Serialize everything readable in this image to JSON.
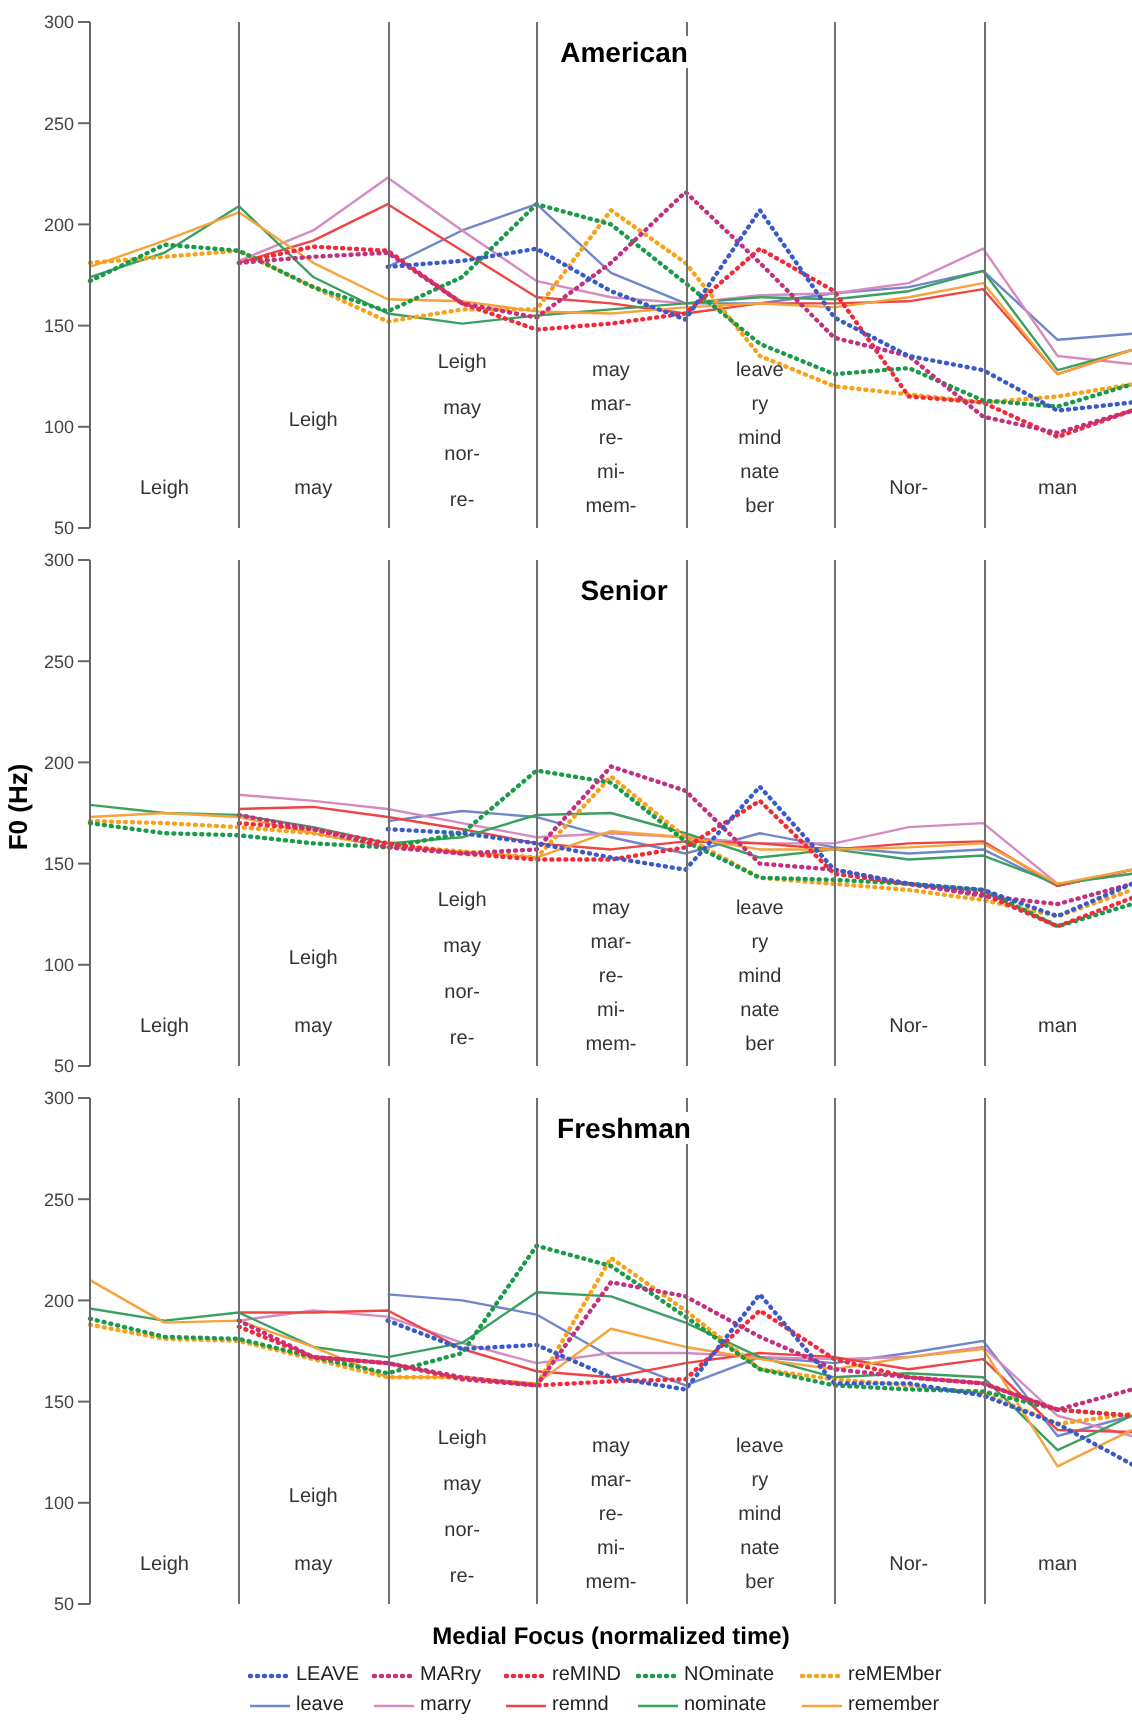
{
  "chart_data": [
    {
      "type": "line",
      "title": "American",
      "categories": [
        null,
        null,
        null,
        null,
        null,
        null,
        null,
        null,
        null,
        null,
        null,
        null,
        null,
        null,
        null
      ],
      "ylim": [
        50,
        300
      ],
      "yticks": [
        50,
        100,
        150,
        200,
        250,
        300
      ],
      "tick_labels": "y",
      "marker": "none",
      "series": [
        {
          "color": "#3a5bc7",
          "line_style": "dotted",
          "values": [
            null,
            null,
            null,
            null,
            179,
            182,
            188,
            167,
            153,
            207,
            154,
            135,
            128,
            108,
            112
          ]
        },
        {
          "color": "#6f86c9",
          "line_style": "solid",
          "values": [
            null,
            null,
            null,
            null,
            179,
            197,
            210,
            176,
            161,
            161,
            166,
            169,
            177,
            143,
            146
          ]
        },
        {
          "color": "#c2307f",
          "line_style": "dotted",
          "values": [
            null,
            null,
            181,
            184,
            186,
            161,
            154,
            181,
            216,
            181,
            144,
            135,
            105,
            97,
            108
          ]
        },
        {
          "color": "#d58bc0",
          "line_style": "solid",
          "values": [
            null,
            null,
            182,
            197,
            223,
            197,
            172,
            164,
            161,
            165,
            166,
            171,
            188,
            135,
            131
          ]
        },
        {
          "color": "#f02a3a",
          "line_style": "dotted",
          "values": [
            null,
            null,
            181,
            189,
            187,
            161,
            148,
            151,
            156,
            188,
            167,
            115,
            112,
            95,
            108
          ]
        },
        {
          "color": "#ee4444",
          "line_style": "solid",
          "values": [
            null,
            null,
            181,
            192,
            210,
            187,
            164,
            161,
            156,
            161,
            161,
            162,
            168,
            126,
            138
          ]
        },
        {
          "color": "#1a9a4a",
          "line_style": "dotted",
          "values": [
            172,
            190,
            187,
            169,
            157,
            174,
            210,
            200,
            171,
            141,
            126,
            129,
            113,
            110,
            121
          ]
        },
        {
          "color": "#3aa060",
          "line_style": "solid",
          "values": [
            174,
            186,
            209,
            174,
            156,
            151,
            155,
            158,
            161,
            164,
            163,
            167,
            177,
            128,
            138
          ]
        },
        {
          "color": "#f7a21c",
          "line_style": "dotted",
          "values": [
            181,
            184,
            187,
            169,
            152,
            158,
            158,
            207,
            181,
            135,
            120,
            116,
            112,
            115,
            121
          ]
        },
        {
          "color": "#f5a33a",
          "line_style": "solid",
          "values": [
            179,
            192,
            206,
            181,
            163,
            162,
            157,
            156,
            159,
            161,
            159,
            164,
            171,
            126,
            138
          ]
        }
      ],
      "annotations": [
        "Leigh",
        "Leigh\nmay",
        "Leigh\nmay\nnor-\nre-",
        "may\nmar-\nre-\nmi-\nmem-",
        "leave\nry\nmind\nnate\nber",
        "Nor-",
        "man"
      ]
    },
    {
      "type": "line",
      "title": "Senior",
      "ylabel": "F0 (Hz)",
      "categories": [
        null,
        null,
        null,
        null,
        null,
        null,
        null,
        null,
        null,
        null,
        null,
        null,
        null,
        null,
        null
      ],
      "ylim": [
        50,
        300
      ],
      "yticks": [
        50,
        100,
        150,
        200,
        250,
        300
      ],
      "tick_labels": "y",
      "marker": "none",
      "series": [
        {
          "color": "#3a5bc7",
          "line_style": "dotted",
          "values": [
            null,
            null,
            null,
            null,
            167,
            165,
            160,
            153,
            147,
            188,
            147,
            140,
            137,
            124,
            140
          ]
        },
        {
          "color": "#6f86c9",
          "line_style": "solid",
          "values": [
            null,
            null,
            null,
            null,
            171,
            176,
            173,
            163,
            155,
            165,
            158,
            155,
            157,
            139,
            147
          ]
        },
        {
          "color": "#c2307f",
          "line_style": "dotted",
          "values": [
            null,
            null,
            174,
            167,
            158,
            155,
            157,
            198,
            186,
            150,
            147,
            140,
            134,
            130,
            140
          ]
        },
        {
          "color": "#d58bc0",
          "line_style": "solid",
          "values": [
            null,
            null,
            184,
            181,
            177,
            170,
            163,
            165,
            163,
            160,
            160,
            168,
            170,
            140,
            145
          ]
        },
        {
          "color": "#f02a3a",
          "line_style": "dotted",
          "values": [
            null,
            null,
            170,
            167,
            160,
            155,
            152,
            152,
            158,
            181,
            145,
            140,
            135,
            119,
            133
          ]
        },
        {
          "color": "#ee4444",
          "line_style": "solid",
          "values": [
            null,
            null,
            177,
            178,
            173,
            167,
            160,
            157,
            161,
            160,
            157,
            160,
            161,
            139,
            147
          ]
        },
        {
          "color": "#1a9a4a",
          "line_style": "dotted",
          "values": [
            170,
            165,
            164,
            160,
            158,
            165,
            196,
            190,
            161,
            143,
            142,
            140,
            137,
            119,
            130
          ]
        },
        {
          "color": "#3aa060",
          "line_style": "solid",
          "values": [
            179,
            175,
            174,
            168,
            160,
            163,
            174,
            175,
            165,
            153,
            157,
            152,
            154,
            140,
            145
          ]
        },
        {
          "color": "#f7a21c",
          "line_style": "dotted",
          "values": [
            171,
            170,
            168,
            165,
            159,
            156,
            153,
            193,
            163,
            143,
            140,
            137,
            132,
            124,
            137
          ]
        },
        {
          "color": "#f5a33a",
          "line_style": "solid",
          "values": [
            173,
            175,
            173,
            165,
            158,
            156,
            153,
            166,
            163,
            157,
            157,
            158,
            160,
            140,
            147
          ]
        }
      ],
      "annotations": [
        "Leigh",
        "Leigh\nmay",
        "Leigh\nmay\nnor-\nre-",
        "may\nmar-\nre-\nmi-\nmem-",
        "leave\nry\nmind\nnate\nber",
        "Nor-",
        "man"
      ]
    },
    {
      "type": "line",
      "title": "Freshman",
      "xlabel": "Medial Focus (normalized time)",
      "legend": "bottom",
      "categories": [
        null,
        null,
        null,
        null,
        null,
        null,
        null,
        null,
        null,
        null,
        null,
        null,
        null,
        null,
        null
      ],
      "ylim": [
        50,
        300
      ],
      "yticks": [
        50,
        100,
        150,
        200,
        250,
        300
      ],
      "tick_labels": "y",
      "marker": "none",
      "series": [
        {
          "name": "LEAVE",
          "color": "#3a5bc7",
          "line_style": "dotted",
          "values": [
            null,
            null,
            null,
            null,
            190,
            176,
            178,
            162,
            156,
            203,
            159,
            159,
            153,
            139,
            119
          ]
        },
        {
          "name": "leave",
          "color": "#6f86c9",
          "line_style": "solid",
          "values": [
            null,
            null,
            null,
            null,
            203,
            200,
            193,
            172,
            158,
            172,
            169,
            174,
            180,
            133,
            143
          ]
        },
        {
          "name": "MARry",
          "color": "#c2307f",
          "line_style": "dotted",
          "values": [
            null,
            null,
            190,
            172,
            169,
            162,
            158,
            209,
            202,
            182,
            166,
            162,
            159,
            146,
            156
          ]
        },
        {
          "name": "marry",
          "color": "#d58bc0",
          "line_style": "solid",
          "values": [
            null,
            null,
            190,
            195,
            192,
            179,
            169,
            174,
            174,
            172,
            171,
            172,
            177,
            143,
            133
          ]
        },
        {
          "name": "reMIND",
          "color": "#f02a3a",
          "line_style": "dotted",
          "values": [
            null,
            null,
            187,
            172,
            169,
            161,
            158,
            160,
            161,
            195,
            171,
            162,
            159,
            146,
            143
          ]
        },
        {
          "name": "remnd",
          "color": "#ee4444",
          "line_style": "solid",
          "values": [
            null,
            null,
            194,
            194,
            195,
            176,
            165,
            162,
            169,
            174,
            172,
            166,
            171,
            136,
            135
          ]
        },
        {
          "name": "NOminate",
          "color": "#1a9a4a",
          "line_style": "dotted",
          "values": [
            191,
            182,
            181,
            172,
            164,
            174,
            227,
            217,
            192,
            166,
            158,
            156,
            155,
            146,
            143
          ]
        },
        {
          "name": "nominate",
          "color": "#3aa060",
          "line_style": "solid",
          "values": [
            196,
            190,
            194,
            177,
            172,
            179,
            204,
            202,
            189,
            172,
            162,
            164,
            162,
            126,
            143
          ]
        },
        {
          "name": "reMEMber",
          "color": "#f7a21c",
          "line_style": "dotted",
          "values": [
            188,
            181,
            180,
            171,
            162,
            162,
            158,
            221,
            195,
            166,
            161,
            158,
            154,
            139,
            144
          ]
        },
        {
          "name": "remember",
          "color": "#f5a33a",
          "line_style": "solid",
          "values": [
            210,
            189,
            190,
            177,
            162,
            162,
            159,
            186,
            177,
            171,
            166,
            172,
            176,
            118,
            136
          ]
        }
      ],
      "annotations": [
        "Leigh",
        "Leigh\nmay",
        "Leigh\nmay\nnor-\nre-",
        "may\nmar-\nre-\nmi-\nmem-",
        "leave\nry\nmind\nnate\nber",
        "Nor-",
        "man"
      ]
    }
  ]
}
